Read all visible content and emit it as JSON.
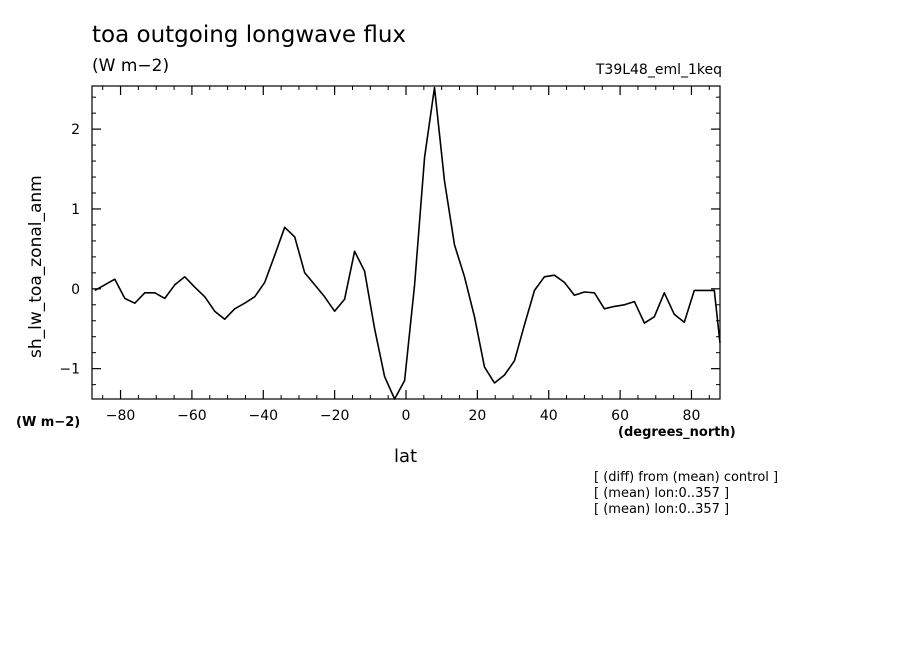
{
  "chart_data": {
    "type": "line",
    "title": "toa outgoing longwave flux",
    "units": "(W m−2)",
    "run_label": "T39L48_eml_1keq",
    "ylabel": "sh_lw_toa_zonal_anm",
    "ylabel_units": "(W m−2)",
    "xlabel": "lat",
    "xlabel_units": "(degrees_north)",
    "xlim": [
      -88,
      88
    ],
    "ylim": [
      -1.38,
      2.54
    ],
    "xticks": [
      -80,
      -60,
      -40,
      -20,
      0,
      20,
      40,
      60,
      80
    ],
    "xtick_labels": [
      "−80",
      "−60",
      "−40",
      "−20",
      "0",
      "20",
      "40",
      "60",
      "80"
    ],
    "yticks": [
      -1,
      0,
      1,
      2
    ],
    "ytick_labels": [
      "−1",
      "0",
      "1",
      "2"
    ],
    "notes": [
      "[ (diff) from (mean) control ]",
      "[ (mean) lon:0..357 ]",
      "[ (mean) lon:0..357 ]"
    ],
    "series": [
      {
        "x": [
          -87.2,
          -84.4,
          -81.6,
          -78.8,
          -76.0,
          -73.2,
          -70.4,
          -67.6,
          -64.8,
          -62.0,
          -59.2,
          -56.4,
          -53.6,
          -50.8,
          -48.0,
          -45.2,
          -42.4,
          -39.6,
          -36.8,
          -34.0,
          -31.2,
          -28.4,
          -25.6,
          -22.8,
          -20.0,
          -17.2,
          -14.4,
          -11.6,
          -8.8,
          -6.0,
          -3.2,
          -0.4,
          2.4,
          5.2,
          8.0,
          10.8,
          13.6,
          16.4,
          19.2,
          22.0,
          24.8,
          27.6,
          30.4,
          33.2,
          36.0,
          38.8,
          41.6,
          44.4,
          47.2,
          50.0,
          52.8,
          55.6,
          58.4,
          61.2,
          64.0,
          66.8,
          69.6,
          72.4,
          75.2,
          78.0,
          80.8,
          83.6,
          86.4,
          88.0
        ],
        "y": [
          -0.02,
          0.05,
          0.12,
          -0.12,
          -0.18,
          -0.05,
          -0.05,
          -0.12,
          0.05,
          0.15,
          0.02,
          -0.1,
          -0.28,
          -0.38,
          -0.25,
          -0.18,
          -0.1,
          0.08,
          0.42,
          0.77,
          0.65,
          0.2,
          0.05,
          -0.1,
          -0.28,
          -0.13,
          0.47,
          0.22,
          -0.5,
          -1.1,
          -1.38,
          -1.15,
          0.05,
          1.65,
          2.52,
          1.35,
          0.55,
          0.15,
          -0.35,
          -0.98,
          -1.18,
          -1.08,
          -0.9,
          -0.45,
          -0.02,
          0.15,
          0.17,
          0.08,
          -0.08,
          -0.04,
          -0.05,
          -0.25,
          -0.22,
          -0.2,
          -0.16,
          -0.43,
          -0.35,
          -0.05,
          -0.32,
          -0.42,
          -0.02,
          -0.02,
          -0.02,
          -0.68
        ]
      }
    ]
  }
}
